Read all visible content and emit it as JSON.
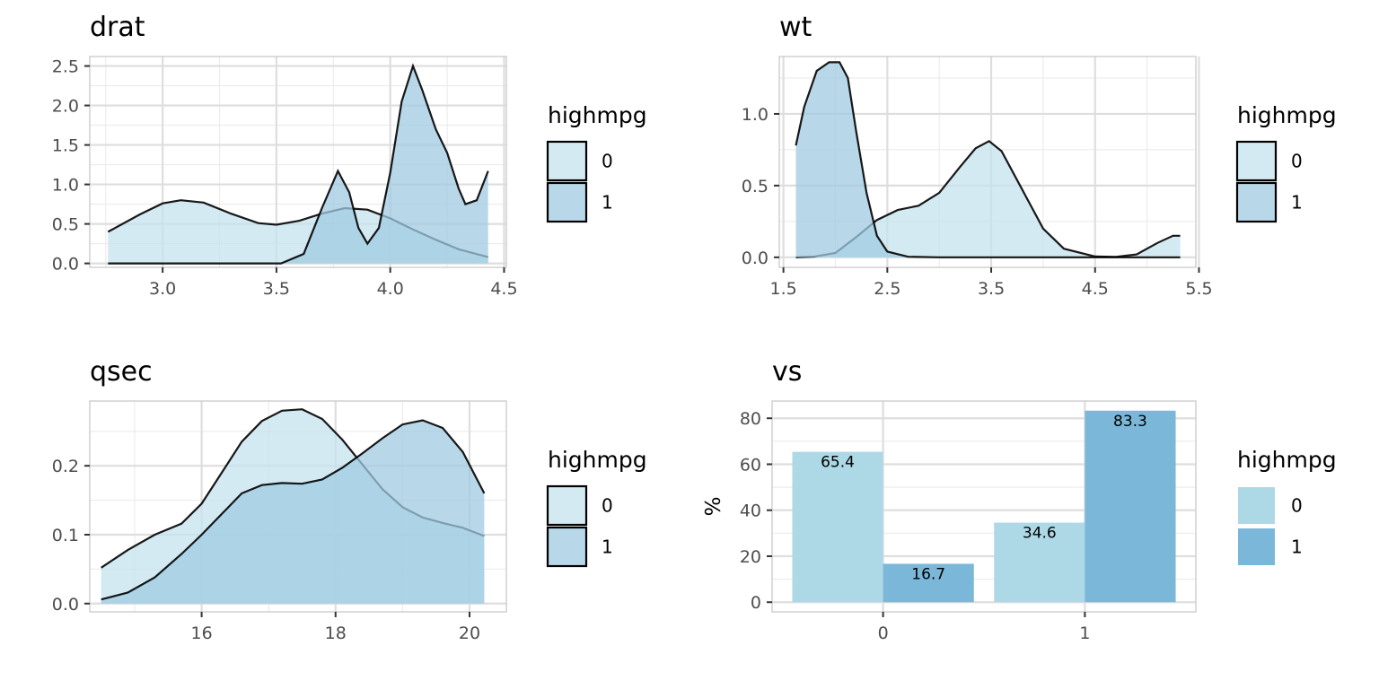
{
  "chart_data": [
    {
      "type": "area",
      "title": "drat",
      "xlabel": "",
      "ylabel": "",
      "xlim": [
        2.68,
        4.51
      ],
      "ylim": [
        -0.05,
        2.62
      ],
      "x_ticks": [
        "3.0",
        "3.5",
        "4.0",
        "4.5"
      ],
      "y_ticks": [
        "0.0",
        "0.5",
        "1.0",
        "1.5",
        "2.0",
        "2.5"
      ],
      "grid": true,
      "legend": {
        "title": "highmpg",
        "position": "right",
        "entries": [
          "0",
          "1"
        ]
      },
      "series": [
        {
          "name": "0",
          "color": "#c6e3ed",
          "points": [
            [
              2.76,
              0.4
            ],
            [
              2.9,
              0.62
            ],
            [
              3.0,
              0.76
            ],
            [
              3.08,
              0.8
            ],
            [
              3.18,
              0.77
            ],
            [
              3.3,
              0.63
            ],
            [
              3.42,
              0.51
            ],
            [
              3.5,
              0.49
            ],
            [
              3.6,
              0.54
            ],
            [
              3.7,
              0.63
            ],
            [
              3.8,
              0.7
            ],
            [
              3.9,
              0.68
            ],
            [
              4.0,
              0.57
            ],
            [
              4.1,
              0.43
            ],
            [
              4.2,
              0.3
            ],
            [
              4.3,
              0.18
            ],
            [
              4.43,
              0.08
            ]
          ]
        },
        {
          "name": "1",
          "color": "#a0cbe3",
          "points": [
            [
              2.76,
              0.0
            ],
            [
              3.52,
              0.0
            ],
            [
              3.62,
              0.12
            ],
            [
              3.7,
              0.7
            ],
            [
              3.77,
              1.17
            ],
            [
              3.82,
              0.9
            ],
            [
              3.86,
              0.45
            ],
            [
              3.9,
              0.25
            ],
            [
              3.95,
              0.45
            ],
            [
              4.0,
              1.15
            ],
            [
              4.05,
              2.05
            ],
            [
              4.1,
              2.5
            ],
            [
              4.14,
              2.2
            ],
            [
              4.2,
              1.7
            ],
            [
              4.25,
              1.4
            ],
            [
              4.3,
              0.95
            ],
            [
              4.33,
              0.75
            ],
            [
              4.38,
              0.8
            ],
            [
              4.43,
              1.17
            ]
          ]
        }
      ]
    },
    {
      "type": "area",
      "title": "wt",
      "xlabel": "",
      "ylabel": "",
      "xlim": [
        1.46,
        5.47
      ],
      "ylim": [
        -0.07,
        1.4
      ],
      "x_ticks": [
        "1.5",
        "2.5",
        "3.5",
        "4.5",
        "5.5"
      ],
      "y_ticks": [
        "0.0",
        "0.5",
        "1.0"
      ],
      "grid": true,
      "legend": {
        "title": "highmpg",
        "position": "right",
        "entries": [
          "0",
          "1"
        ]
      },
      "series": [
        {
          "name": "0",
          "color": "#c6e3ed",
          "points": [
            [
              1.62,
              0.0
            ],
            [
              1.8,
              0.005
            ],
            [
              2.0,
              0.03
            ],
            [
              2.2,
              0.14
            ],
            [
              2.4,
              0.26
            ],
            [
              2.6,
              0.33
            ],
            [
              2.8,
              0.36
            ],
            [
              3.0,
              0.45
            ],
            [
              3.2,
              0.63
            ],
            [
              3.35,
              0.76
            ],
            [
              3.48,
              0.81
            ],
            [
              3.6,
              0.74
            ],
            [
              3.8,
              0.47
            ],
            [
              4.0,
              0.2
            ],
            [
              4.2,
              0.06
            ],
            [
              4.5,
              0.006
            ],
            [
              4.7,
              0.003
            ],
            [
              4.9,
              0.02
            ],
            [
              5.1,
              0.1
            ],
            [
              5.25,
              0.15
            ],
            [
              5.32,
              0.15
            ]
          ]
        },
        {
          "name": "1",
          "color": "#a0cbe3",
          "points": [
            [
              1.62,
              0.78
            ],
            [
              1.7,
              1.05
            ],
            [
              1.82,
              1.3
            ],
            [
              1.94,
              1.36
            ],
            [
              2.04,
              1.36
            ],
            [
              2.12,
              1.25
            ],
            [
              2.2,
              0.88
            ],
            [
              2.3,
              0.45
            ],
            [
              2.4,
              0.15
            ],
            [
              2.5,
              0.04
            ],
            [
              2.7,
              0.004
            ],
            [
              3.0,
              0.0
            ],
            [
              5.32,
              0.0
            ]
          ]
        }
      ]
    },
    {
      "type": "area",
      "title": "qsec",
      "xlabel": "",
      "ylabel": "",
      "xlim": [
        14.33,
        20.55
      ],
      "ylim": [
        -0.012,
        0.294
      ],
      "x_ticks": [
        "16",
        "18",
        "20"
      ],
      "y_ticks": [
        "0.0",
        "0.1",
        "0.2"
      ],
      "grid": true,
      "legend": {
        "title": "highmpg",
        "position": "right",
        "entries": [
          "0",
          "1"
        ]
      },
      "series": [
        {
          "name": "0",
          "color": "#c6e3ed",
          "points": [
            [
              14.5,
              0.052
            ],
            [
              14.9,
              0.078
            ],
            [
              15.3,
              0.1
            ],
            [
              15.7,
              0.116
            ],
            [
              16.0,
              0.145
            ],
            [
              16.3,
              0.19
            ],
            [
              16.6,
              0.235
            ],
            [
              16.9,
              0.265
            ],
            [
              17.2,
              0.28
            ],
            [
              17.5,
              0.282
            ],
            [
              17.8,
              0.268
            ],
            [
              18.1,
              0.238
            ],
            [
              18.4,
              0.202
            ],
            [
              18.7,
              0.166
            ],
            [
              19.0,
              0.14
            ],
            [
              19.3,
              0.125
            ],
            [
              19.6,
              0.117
            ],
            [
              19.9,
              0.11
            ],
            [
              20.22,
              0.098
            ]
          ]
        },
        {
          "name": "1",
          "color": "#a0cbe3",
          "points": [
            [
              14.5,
              0.006
            ],
            [
              14.9,
              0.016
            ],
            [
              15.3,
              0.038
            ],
            [
              15.7,
              0.072
            ],
            [
              16.0,
              0.1
            ],
            [
              16.3,
              0.13
            ],
            [
              16.6,
              0.16
            ],
            [
              16.9,
              0.172
            ],
            [
              17.2,
              0.175
            ],
            [
              17.5,
              0.174
            ],
            [
              17.8,
              0.18
            ],
            [
              18.1,
              0.197
            ],
            [
              18.4,
              0.218
            ],
            [
              18.7,
              0.24
            ],
            [
              19.0,
              0.26
            ],
            [
              19.3,
              0.266
            ],
            [
              19.6,
              0.255
            ],
            [
              19.9,
              0.22
            ],
            [
              20.22,
              0.16
            ]
          ]
        }
      ]
    },
    {
      "type": "bar",
      "title": "vs",
      "xlabel": "",
      "ylabel": "%",
      "categories": [
        "0",
        "1"
      ],
      "ylim": [
        -4.2,
        87.5
      ],
      "x_ticks": [
        "0",
        "1"
      ],
      "y_ticks": [
        "0",
        "20",
        "40",
        "60",
        "80"
      ],
      "grid": true,
      "legend": {
        "title": "highmpg",
        "position": "right",
        "entries": [
          "0",
          "1"
        ]
      },
      "series": [
        {
          "name": "0",
          "color": "#add8e6",
          "values": [
            65.4,
            34.6
          ],
          "labels": [
            "65.4",
            "34.6"
          ]
        },
        {
          "name": "1",
          "color": "#7bb7d9",
          "values": [
            16.7,
            83.3
          ],
          "labels": [
            "16.7",
            "83.3"
          ]
        }
      ]
    }
  ]
}
